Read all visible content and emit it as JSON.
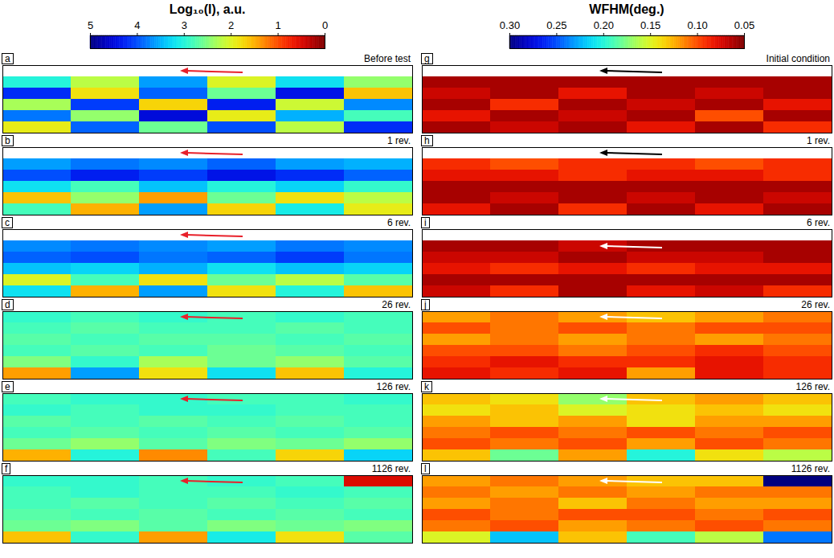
{
  "chart_data": [
    {
      "type": "heatmap",
      "tick_labels": false,
      "colorbar": {
        "label": "Log₁₀(I), a.u.",
        "range": [
          5,
          0
        ],
        "ticks": [
          5,
          4,
          3,
          2,
          1,
          0
        ]
      },
      "panels": [
        {
          "title": "a",
          "subtitle": "Before test",
          "cells": [
            [
              null,
              null,
              null,
              null,
              null,
              null
            ],
            [
              3.0,
              2.2,
              3.6,
              2.0,
              3.2,
              2.4
            ],
            [
              4.2,
              1.8,
              3.9,
              2.6,
              4.4,
              1.6
            ],
            [
              2.3,
              4.1,
              1.7,
              4.3,
              2.1,
              3.7
            ],
            [
              3.8,
              2.4,
              4.5,
              1.9,
              3.5,
              2.8
            ],
            [
              1.9,
              3.9,
              2.6,
              4.0,
              2.2,
              4.2
            ]
          ]
        },
        {
          "title": "b",
          "subtitle": "1 rev.",
          "cells": [
            [
              null,
              null,
              null,
              null,
              null,
              null
            ],
            [
              3.6,
              3.8,
              3.7,
              3.9,
              3.6,
              3.5
            ],
            [
              4.0,
              4.3,
              4.1,
              4.4,
              4.2,
              3.9
            ],
            [
              3.2,
              2.8,
              3.4,
              3.0,
              3.3,
              2.9
            ],
            [
              1.6,
              2.4,
              1.4,
              2.6,
              1.8,
              2.2
            ],
            [
              2.8,
              1.5,
              3.6,
              1.7,
              3.1,
              1.9
            ]
          ]
        },
        {
          "title": "c",
          "subtitle": "6 rev.",
          "cells": [
            [
              null,
              null,
              null,
              null,
              null,
              null
            ],
            [
              3.7,
              3.8,
              3.7,
              3.6,
              3.8,
              3.7
            ],
            [
              3.9,
              4.0,
              3.8,
              3.9,
              4.1,
              3.8
            ],
            [
              3.4,
              3.3,
              3.5,
              3.2,
              3.4,
              3.3
            ],
            [
              2.0,
              2.8,
              1.8,
              2.6,
              2.2,
              2.7
            ],
            [
              3.2,
              1.5,
              3.6,
              1.8,
              3.0,
              1.6
            ]
          ]
        },
        {
          "title": "d",
          "subtitle": "26 rev.",
          "cells": [
            [
              2.9,
              2.8,
              2.9,
              2.8,
              2.9,
              2.8
            ],
            [
              2.8,
              2.7,
              2.8,
              2.8,
              2.7,
              2.8
            ],
            [
              2.7,
              2.8,
              2.7,
              2.7,
              2.8,
              2.7
            ],
            [
              2.8,
              2.7,
              2.8,
              2.6,
              2.7,
              2.8
            ],
            [
              2.5,
              2.9,
              2.3,
              2.6,
              2.4,
              2.7
            ],
            [
              1.4,
              3.6,
              1.8,
              3.2,
              1.6,
              3.0
            ]
          ]
        },
        {
          "title": "e",
          "subtitle": "126 rev.",
          "cells": [
            [
              2.8,
              2.9,
              2.9,
              2.8,
              2.8,
              2.9
            ],
            [
              2.9,
              2.8,
              2.9,
              2.9,
              2.8,
              2.8
            ],
            [
              2.7,
              2.8,
              2.7,
              2.8,
              2.7,
              2.8
            ],
            [
              2.8,
              2.7,
              2.8,
              2.7,
              2.8,
              2.7
            ],
            [
              2.6,
              2.4,
              2.7,
              2.5,
              2.6,
              2.4
            ],
            [
              1.5,
              3.0,
              1.3,
              2.8,
              1.7,
              3.3
            ]
          ]
        },
        {
          "title": "f",
          "subtitle": "1126 rev.",
          "cells": [
            [
              2.9,
              2.9,
              2.8,
              2.9,
              2.8,
              0.5
            ],
            [
              2.8,
              2.9,
              2.8,
              2.8,
              2.9,
              2.8
            ],
            [
              2.8,
              2.7,
              2.8,
              2.7,
              2.8,
              2.7
            ],
            [
              2.7,
              2.8,
              2.7,
              2.8,
              2.7,
              2.8
            ],
            [
              2.6,
              2.5,
              2.7,
              2.5,
              2.6,
              2.5
            ],
            [
              1.6,
              2.9,
              1.4,
              3.1,
              1.8,
              2.7
            ]
          ]
        }
      ]
    },
    {
      "type": "heatmap",
      "tick_labels": false,
      "colorbar": {
        "label": "WFHM(deg.)",
        "range": [
          0.3,
          0.05
        ],
        "ticks": [
          {
            "value": 0.3,
            "label": "0.30"
          },
          0.25,
          {
            "value": 0.2,
            "label": "0.20"
          },
          0.15,
          {
            "value": 0.1,
            "label": "0.10"
          },
          0.05
        ]
      },
      "panels": [
        {
          "title": "g",
          "subtitle": "Initial condition",
          "cells": [
            [
              null,
              null,
              null,
              null,
              null,
              null
            ],
            [
              0.06,
              0.06,
              0.06,
              0.06,
              0.06,
              0.06
            ],
            [
              0.07,
              0.06,
              0.08,
              0.06,
              0.07,
              0.06
            ],
            [
              0.06,
              0.09,
              0.06,
              0.07,
              0.06,
              0.08
            ],
            [
              0.08,
              0.06,
              0.07,
              0.06,
              0.1,
              0.06
            ],
            [
              0.06,
              0.07,
              0.06,
              0.08,
              0.06,
              0.09
            ]
          ]
        },
        {
          "title": "h",
          "subtitle": "1 rev.",
          "cells": [
            [
              null,
              null,
              null,
              null,
              null,
              null
            ],
            [
              0.09,
              0.1,
              0.09,
              0.09,
              0.1,
              0.09
            ],
            [
              0.08,
              0.08,
              0.09,
              0.08,
              0.08,
              0.09
            ],
            [
              0.06,
              0.06,
              0.06,
              0.06,
              0.06,
              0.06
            ],
            [
              0.06,
              0.07,
              0.06,
              0.07,
              0.06,
              0.07
            ],
            [
              0.08,
              0.06,
              0.09,
              0.06,
              0.08,
              0.06
            ]
          ]
        },
        {
          "title": "i",
          "subtitle": "6 rev.",
          "cells": [
            [
              null,
              null,
              null,
              null,
              null,
              null
            ],
            [
              0.06,
              0.06,
              0.07,
              0.06,
              0.06,
              0.06
            ],
            [
              0.07,
              0.07,
              0.06,
              0.07,
              0.07,
              0.06
            ],
            [
              0.08,
              0.09,
              0.08,
              0.09,
              0.08,
              0.08
            ],
            [
              0.06,
              0.06,
              0.06,
              0.06,
              0.06,
              0.06
            ],
            [
              0.07,
              0.09,
              0.06,
              0.08,
              0.07,
              0.09
            ]
          ]
        },
        {
          "title": "j",
          "subtitle": "26 rev.",
          "cells": [
            [
              0.12,
              0.11,
              0.12,
              0.13,
              0.12,
              0.11
            ],
            [
              0.1,
              0.11,
              0.1,
              0.11,
              0.1,
              0.1
            ],
            [
              0.12,
              0.11,
              0.12,
              0.11,
              0.12,
              0.11
            ],
            [
              0.1,
              0.1,
              0.11,
              0.1,
              0.09,
              0.1
            ],
            [
              0.09,
              0.08,
              0.09,
              0.09,
              0.08,
              0.09
            ],
            [
              0.08,
              0.09,
              0.08,
              0.12,
              0.08,
              0.09
            ]
          ]
        },
        {
          "title": "k",
          "subtitle": "126 rev.",
          "cells": [
            [
              0.13,
              0.14,
              0.17,
              0.13,
              0.12,
              0.13
            ],
            [
              0.14,
              0.13,
              0.15,
              0.14,
              0.13,
              0.14
            ],
            [
              0.12,
              0.13,
              0.12,
              0.14,
              0.12,
              0.12
            ],
            [
              0.11,
              0.1,
              0.11,
              0.1,
              0.11,
              0.1
            ],
            [
              0.1,
              0.11,
              0.1,
              0.12,
              0.1,
              0.11
            ],
            [
              0.13,
              0.18,
              0.12,
              0.2,
              0.14,
              0.16
            ]
          ]
        },
        {
          "title": "l",
          "subtitle": "1126 rev.",
          "cells": [
            [
              0.12,
              0.11,
              0.12,
              0.13,
              0.13,
              0.3
            ],
            [
              0.11,
              0.12,
              0.11,
              0.12,
              0.11,
              0.11
            ],
            [
              0.12,
              0.11,
              0.13,
              0.11,
              0.12,
              0.12
            ],
            [
              0.1,
              0.11,
              0.1,
              0.1,
              0.11,
              0.1
            ],
            [
              0.11,
              0.1,
              0.12,
              0.11,
              0.1,
              0.11
            ],
            [
              0.15,
              0.22,
              0.13,
              0.19,
              0.16,
              0.24
            ]
          ]
        }
      ]
    }
  ]
}
